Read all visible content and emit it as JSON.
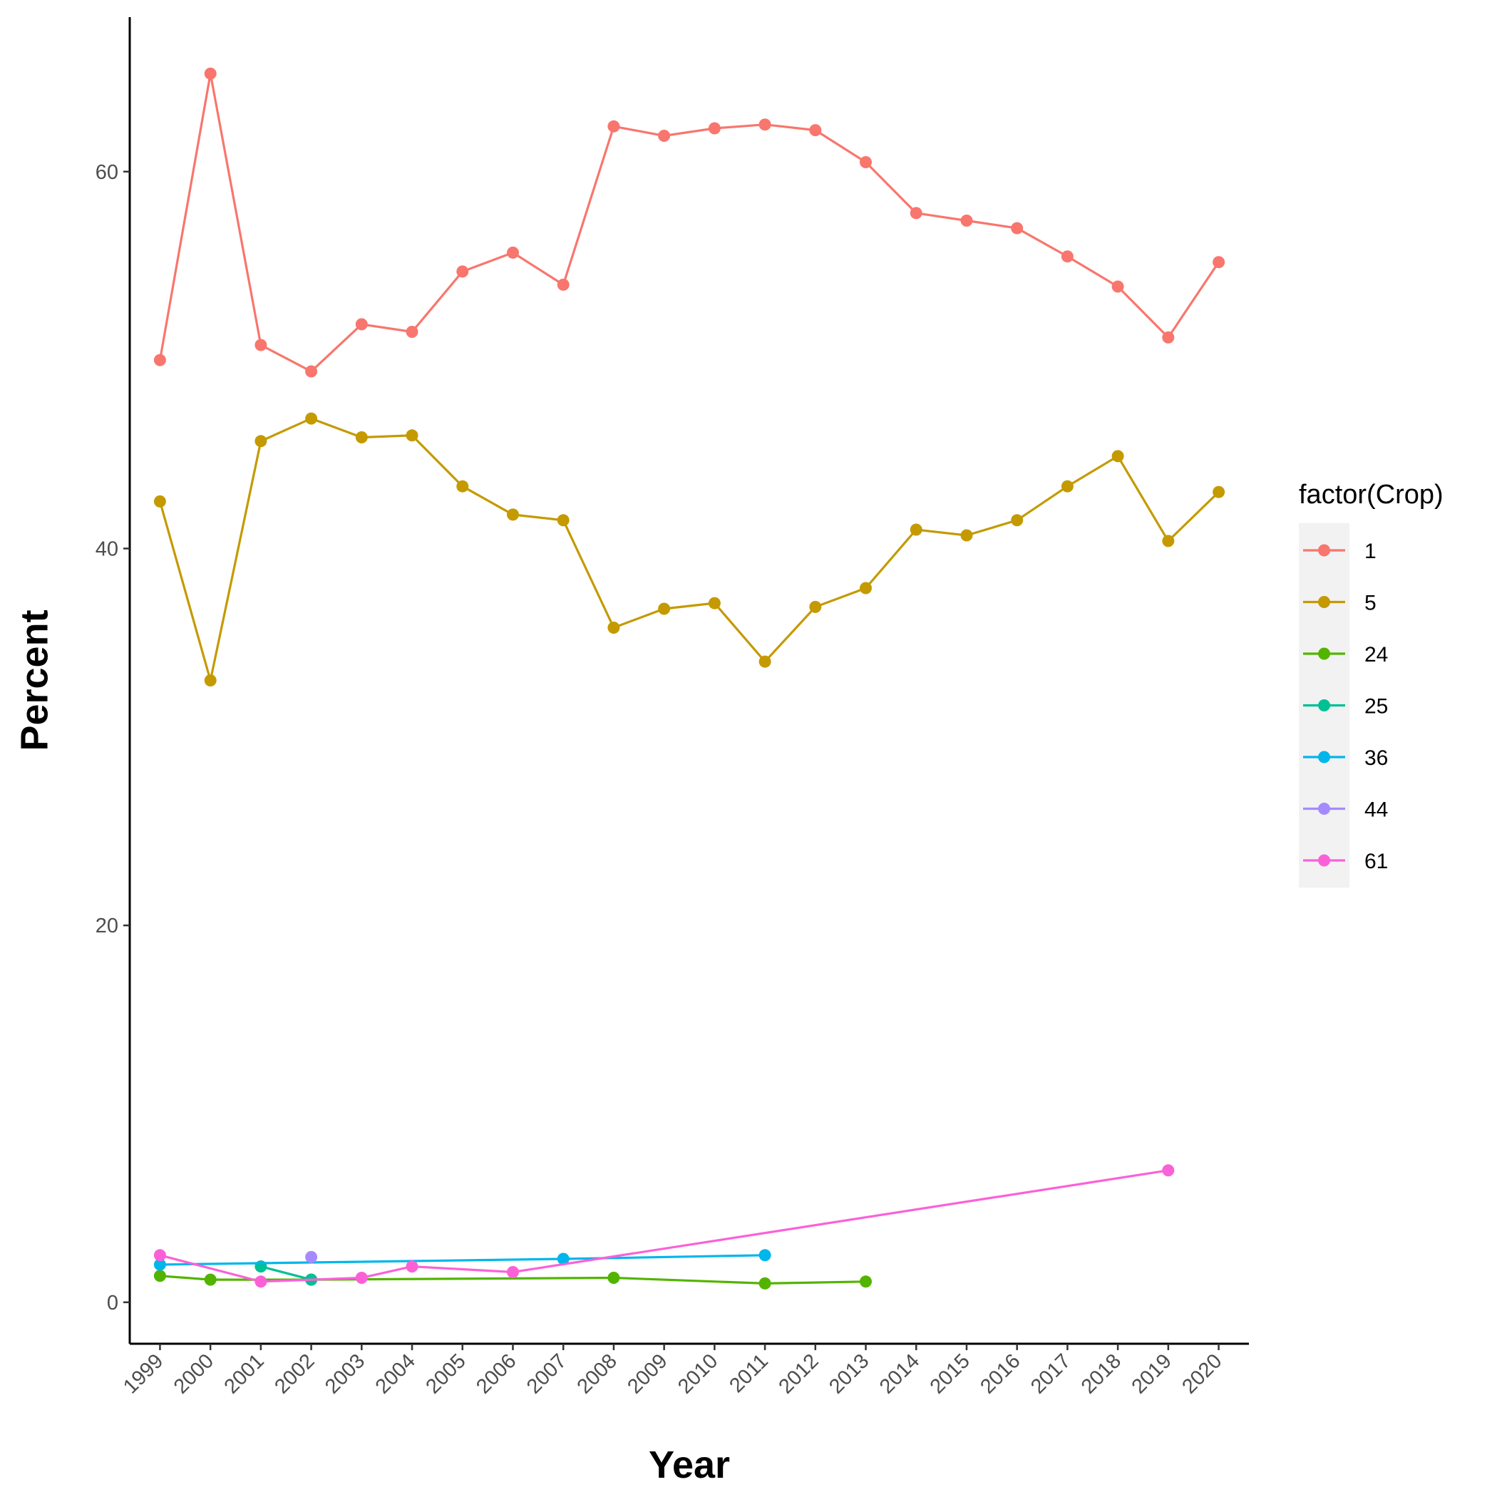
{
  "chart_data": {
    "type": "line",
    "xlabel": "Year",
    "ylabel": "Percent",
    "x_ticks": [
      "1999",
      "2000",
      "2001",
      "2002",
      "2003",
      "2004",
      "2005",
      "2006",
      "2007",
      "2008",
      "2009",
      "2010",
      "2011",
      "2012",
      "2013",
      "2014",
      "2015",
      "2016",
      "2017",
      "2018",
      "2019",
      "2020"
    ],
    "y_ticks": [
      0,
      20,
      40,
      60
    ],
    "xlim": [
      1998.4,
      2020.6
    ],
    "ylim": [
      -2.2,
      68.2
    ],
    "grid": false,
    "legend": {
      "title": "factor(Crop)",
      "position": "right"
    },
    "series": [
      {
        "name": "1",
        "color": "#F8766D",
        "points": [
          [
            1999,
            50.0
          ],
          [
            2000,
            65.2
          ],
          [
            2001,
            50.8
          ],
          [
            2002,
            49.4
          ],
          [
            2003,
            51.9
          ],
          [
            2004,
            51.5
          ],
          [
            2005,
            54.7
          ],
          [
            2006,
            55.7
          ],
          [
            2007,
            54.0
          ],
          [
            2008,
            62.4
          ],
          [
            2009,
            61.9
          ],
          [
            2010,
            62.3
          ],
          [
            2011,
            62.5
          ],
          [
            2012,
            62.2
          ],
          [
            2013,
            60.5
          ],
          [
            2014,
            57.8
          ],
          [
            2015,
            57.4
          ],
          [
            2016,
            57.0
          ],
          [
            2017,
            55.5
          ],
          [
            2018,
            53.9
          ],
          [
            2019,
            51.2
          ],
          [
            2020,
            55.2
          ]
        ]
      },
      {
        "name": "5",
        "color": "#C49A00",
        "points": [
          [
            1999,
            42.5
          ],
          [
            2000,
            33.0
          ],
          [
            2001,
            45.7
          ],
          [
            2002,
            46.9
          ],
          [
            2003,
            45.9
          ],
          [
            2004,
            46.0
          ],
          [
            2005,
            43.3
          ],
          [
            2006,
            41.8
          ],
          [
            2007,
            41.5
          ],
          [
            2008,
            35.8
          ],
          [
            2009,
            36.8
          ],
          [
            2010,
            37.1
          ],
          [
            2011,
            34.0
          ],
          [
            2012,
            36.9
          ],
          [
            2013,
            37.9
          ],
          [
            2014,
            41.0
          ],
          [
            2015,
            40.7
          ],
          [
            2016,
            41.5
          ],
          [
            2017,
            43.3
          ],
          [
            2018,
            44.9
          ],
          [
            2019,
            40.4
          ],
          [
            2020,
            43.0
          ]
        ]
      },
      {
        "name": "24",
        "color": "#53B400",
        "points": [
          [
            1999,
            1.4
          ],
          [
            2000,
            1.2
          ],
          [
            2002,
            1.2
          ],
          [
            2008,
            1.3
          ],
          [
            2011,
            1.0
          ],
          [
            2013,
            1.1
          ]
        ]
      },
      {
        "name": "25",
        "color": "#00C094",
        "points": [
          [
            2001,
            1.9
          ],
          [
            2002,
            1.2
          ]
        ]
      },
      {
        "name": "36",
        "color": "#00B6EB",
        "points": [
          [
            1999,
            2.0
          ],
          [
            2007,
            2.3
          ],
          [
            2011,
            2.5
          ]
        ]
      },
      {
        "name": "44",
        "color": "#A58AFF",
        "points": [
          [
            2002,
            2.4
          ]
        ]
      },
      {
        "name": "61",
        "color": "#FB61D7",
        "points": [
          [
            1999,
            2.5
          ],
          [
            2001,
            1.1
          ],
          [
            2003,
            1.3
          ],
          [
            2004,
            1.9
          ],
          [
            2006,
            1.6
          ],
          [
            2019,
            7.0
          ]
        ]
      }
    ]
  }
}
